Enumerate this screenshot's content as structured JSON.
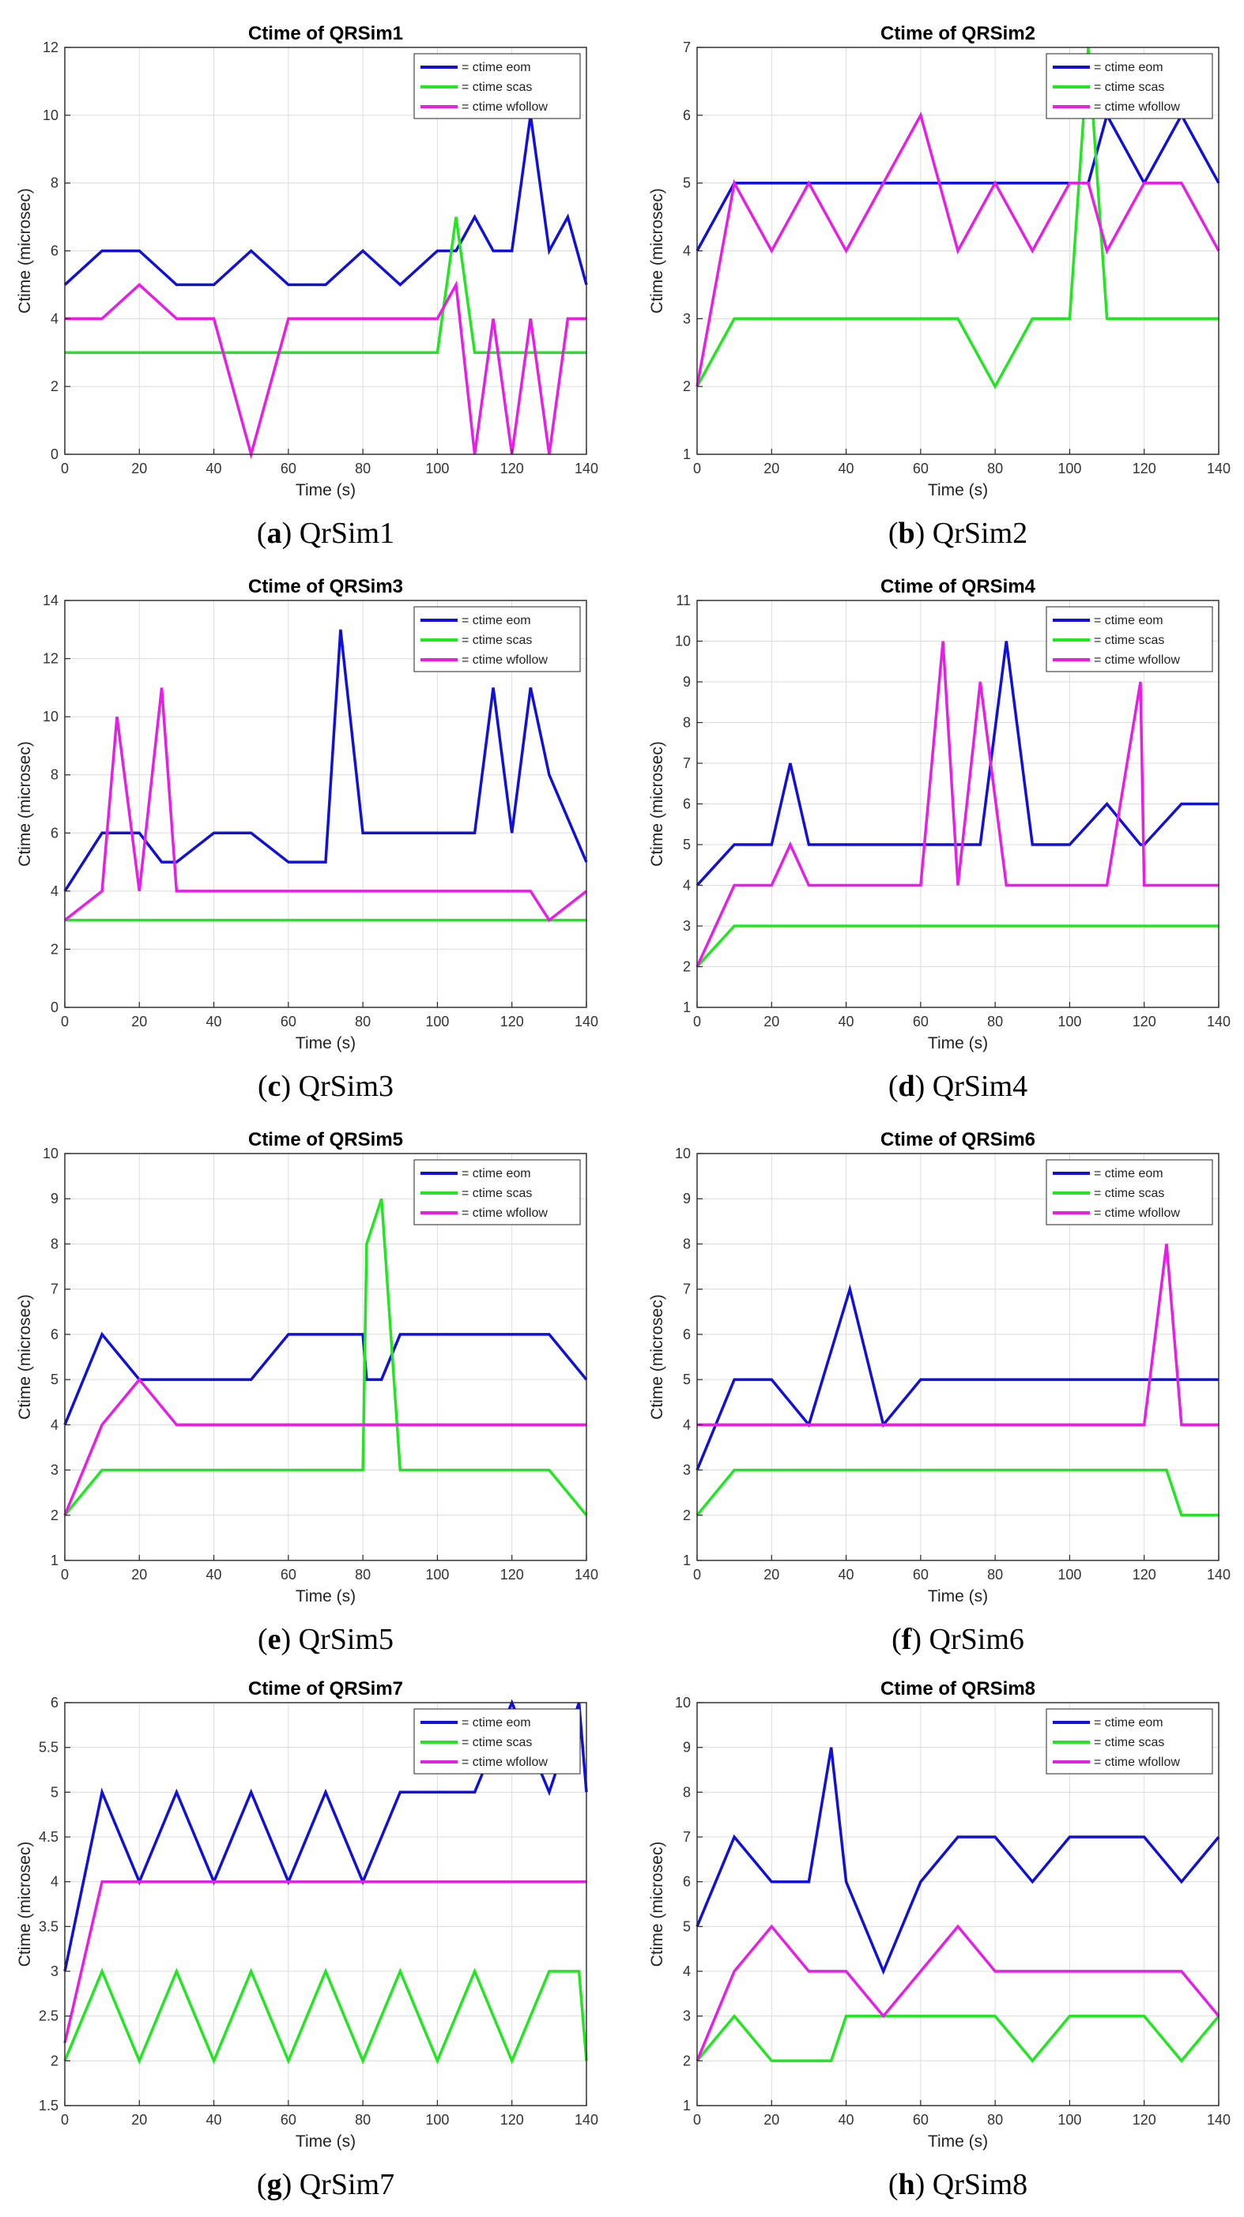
{
  "chart_data": [
    {
      "type": "line",
      "title": "Ctime of QRSim1",
      "caption_letter": "a",
      "caption_text": "QrSim1",
      "xlabel": "Time (s)",
      "ylabel": "Ctime (microsec)",
      "xlim": [
        0,
        140
      ],
      "ylim": [
        0,
        12
      ],
      "xticks": [
        0,
        20,
        40,
        60,
        80,
        100,
        120,
        140
      ],
      "yticks": [
        0,
        2,
        4,
        6,
        8,
        10,
        12
      ],
      "grid": true,
      "legend": "top-right",
      "x": [
        0,
        10,
        20,
        30,
        40,
        50,
        60,
        70,
        80,
        90,
        100,
        105,
        110,
        115,
        120,
        125,
        130,
        135,
        140
      ],
      "series": [
        {
          "name": "= ctime eom",
          "color": "#1010d8",
          "values": [
            5,
            6,
            6,
            5,
            5,
            6,
            5,
            5,
            6,
            5,
            6,
            6,
            7,
            6,
            6,
            10,
            6,
            7,
            5
          ]
        },
        {
          "name": "= ctime scas",
          "color": "#22e622",
          "values": [
            3,
            3,
            3,
            3,
            3,
            3,
            3,
            3,
            3,
            3,
            3,
            7,
            3,
            3,
            3,
            3,
            3,
            3,
            3
          ]
        },
        {
          "name": "= ctime wfollow",
          "color": "#e61ee6",
          "values": [
            4,
            4,
            5,
            4,
            4,
            0,
            4,
            4,
            4,
            4,
            4,
            5,
            0,
            4,
            0,
            4,
            0,
            4,
            4
          ]
        }
      ]
    },
    {
      "type": "line",
      "title": "Ctime of QRSim2",
      "caption_letter": "b",
      "caption_text": "QrSim2",
      "xlabel": "Time (s)",
      "ylabel": "Ctime (microsec)",
      "xlim": [
        0,
        140
      ],
      "ylim": [
        1,
        7
      ],
      "xticks": [
        0,
        20,
        40,
        60,
        80,
        100,
        120,
        140
      ],
      "yticks": [
        1,
        2,
        3,
        4,
        5,
        6,
        7
      ],
      "grid": true,
      "legend": "top-right",
      "x": [
        0,
        10,
        20,
        30,
        40,
        50,
        60,
        70,
        80,
        90,
        100,
        105,
        110,
        120,
        130,
        140
      ],
      "series": [
        {
          "name": "= ctime eom",
          "color": "#1010d8",
          "values": [
            4,
            5,
            5,
            5,
            5,
            5,
            5,
            5,
            5,
            5,
            5,
            5,
            6,
            5,
            6,
            5
          ]
        },
        {
          "name": "= ctime scas",
          "color": "#22e622",
          "values": [
            2,
            3,
            3,
            3,
            3,
            3,
            3,
            3,
            2,
            3,
            3,
            7,
            3,
            3,
            3,
            3
          ]
        },
        {
          "name": "= ctime wfollow",
          "color": "#e61ee6",
          "values": [
            2,
            5,
            4,
            5,
            4,
            5,
            6,
            4,
            5,
            4,
            5,
            5,
            4,
            5,
            5,
            4
          ]
        }
      ]
    },
    {
      "type": "line",
      "title": "Ctime of QRSim3",
      "caption_letter": "c",
      "caption_text": "QrSim3",
      "xlabel": "Time (s)",
      "ylabel": "Ctime (microsec)",
      "xlim": [
        0,
        140
      ],
      "ylim": [
        0,
        14
      ],
      "xticks": [
        0,
        20,
        40,
        60,
        80,
        100,
        120,
        140
      ],
      "yticks": [
        0,
        2,
        4,
        6,
        8,
        10,
        12,
        14
      ],
      "grid": true,
      "legend": "top-right",
      "x": [
        0,
        10,
        14,
        20,
        26,
        30,
        40,
        50,
        60,
        70,
        74,
        80,
        90,
        100,
        110,
        115,
        120,
        125,
        130,
        140
      ],
      "series": [
        {
          "name": "= ctime eom",
          "color": "#1010d8",
          "values": [
            4,
            6,
            6,
            6,
            5,
            5,
            6,
            6,
            5,
            5,
            13,
            6,
            6,
            6,
            6,
            11,
            6,
            11,
            8,
            5
          ]
        },
        {
          "name": "= ctime scas",
          "color": "#22e622",
          "values": [
            3,
            3,
            3,
            3,
            3,
            3,
            3,
            3,
            3,
            3,
            3,
            3,
            3,
            3,
            3,
            3,
            3,
            3,
            3,
            3
          ]
        },
        {
          "name": "= ctime wfollow",
          "color": "#e61ee6",
          "values": [
            3,
            4,
            10,
            4,
            11,
            4,
            4,
            4,
            4,
            4,
            4,
            4,
            4,
            4,
            4,
            4,
            4,
            4,
            3,
            4
          ]
        }
      ]
    },
    {
      "type": "line",
      "title": "Ctime of QRSim4",
      "caption_letter": "d",
      "caption_text": "QrSim4",
      "xlabel": "Time (s)",
      "ylabel": "Ctime (microsec)",
      "xlim": [
        0,
        140
      ],
      "ylim": [
        1,
        11
      ],
      "xticks": [
        0,
        20,
        40,
        60,
        80,
        100,
        120,
        140
      ],
      "yticks": [
        1,
        2,
        3,
        4,
        5,
        6,
        7,
        8,
        9,
        10,
        11
      ],
      "grid": true,
      "legend": "top-right",
      "x": [
        0,
        10,
        20,
        25,
        30,
        40,
        50,
        60,
        66,
        70,
        76,
        83,
        90,
        100,
        110,
        119,
        120,
        130,
        140
      ],
      "series": [
        {
          "name": "= ctime eom",
          "color": "#1010d8",
          "values": [
            4,
            5,
            5,
            7,
            5,
            5,
            5,
            5,
            5,
            5,
            5,
            10,
            5,
            5,
            6,
            5,
            5,
            6,
            6
          ]
        },
        {
          "name": "= ctime scas",
          "color": "#22e622",
          "values": [
            2,
            3,
            3,
            3,
            3,
            3,
            3,
            3,
            3,
            3,
            3,
            3,
            3,
            3,
            3,
            3,
            3,
            3,
            3
          ]
        },
        {
          "name": "= ctime wfollow",
          "color": "#e61ee6",
          "values": [
            2,
            4,
            4,
            5,
            4,
            4,
            4,
            4,
            10,
            4,
            9,
            4,
            4,
            4,
            4,
            9,
            4,
            4,
            4
          ]
        }
      ]
    },
    {
      "type": "line",
      "title": "Ctime of QRSim5",
      "caption_letter": "e",
      "caption_text": "QrSim5",
      "xlabel": "Time (s)",
      "ylabel": "Ctime (microsec)",
      "xlim": [
        0,
        140
      ],
      "ylim": [
        1,
        10
      ],
      "xticks": [
        0,
        20,
        40,
        60,
        80,
        100,
        120,
        140
      ],
      "yticks": [
        1,
        2,
        3,
        4,
        5,
        6,
        7,
        8,
        9,
        10
      ],
      "grid": true,
      "legend": "top-right",
      "x": [
        0,
        10,
        20,
        30,
        40,
        50,
        60,
        70,
        80,
        81,
        85,
        90,
        100,
        110,
        120,
        130,
        140
      ],
      "series": [
        {
          "name": "= ctime eom",
          "color": "#1010d8",
          "values": [
            4,
            6,
            5,
            5,
            5,
            5,
            6,
            6,
            6,
            5,
            5,
            6,
            6,
            6,
            6,
            6,
            5
          ]
        },
        {
          "name": "= ctime scas",
          "color": "#22e622",
          "values": [
            2,
            3,
            3,
            3,
            3,
            3,
            3,
            3,
            3,
            8,
            9,
            3,
            3,
            3,
            3,
            3,
            2
          ]
        },
        {
          "name": "= ctime wfollow",
          "color": "#e61ee6",
          "values": [
            2,
            4,
            5,
            4,
            4,
            4,
            4,
            4,
            4,
            4,
            4,
            4,
            4,
            4,
            4,
            4,
            4
          ]
        }
      ]
    },
    {
      "type": "line",
      "title": "Ctime of QRSim6",
      "caption_letter": "f",
      "caption_text": "QrSim6",
      "xlabel": "Time (s)",
      "ylabel": "Ctime (microsec)",
      "xlim": [
        0,
        140
      ],
      "ylim": [
        1,
        10
      ],
      "xticks": [
        0,
        20,
        40,
        60,
        80,
        100,
        120,
        140
      ],
      "yticks": [
        1,
        2,
        3,
        4,
        5,
        6,
        7,
        8,
        9,
        10
      ],
      "grid": true,
      "legend": "top-right",
      "x": [
        0,
        10,
        20,
        30,
        41,
        50,
        60,
        70,
        80,
        90,
        100,
        110,
        120,
        126,
        130,
        140
      ],
      "series": [
        {
          "name": "= ctime eom",
          "color": "#1010d8",
          "values": [
            3,
            5,
            5,
            4,
            7,
            4,
            5,
            5,
            5,
            5,
            5,
            5,
            5,
            5,
            5,
            5
          ]
        },
        {
          "name": "= ctime scas",
          "color": "#22e622",
          "values": [
            2,
            3,
            3,
            3,
            3,
            3,
            3,
            3,
            3,
            3,
            3,
            3,
            3,
            3,
            2,
            2
          ]
        },
        {
          "name": "= ctime wfollow",
          "color": "#e61ee6",
          "values": [
            4,
            4,
            4,
            4,
            4,
            4,
            4,
            4,
            4,
            4,
            4,
            4,
            4,
            8,
            4,
            4
          ]
        }
      ]
    },
    {
      "type": "line",
      "title": "Ctime of QRSim7",
      "caption_letter": "g",
      "caption_text": "QrSim7",
      "xlabel": "Time (s)",
      "ylabel": "Ctime (microsec)",
      "xlim": [
        0,
        140
      ],
      "ylim": [
        1.5,
        6
      ],
      "xticks": [
        0,
        20,
        40,
        60,
        80,
        100,
        120,
        140
      ],
      "yticks": [
        1.5,
        2,
        2.5,
        3,
        3.5,
        4,
        4.5,
        5,
        5.5,
        6
      ],
      "grid": true,
      "legend": "top-right",
      "x": [
        0,
        10,
        20,
        30,
        40,
        50,
        60,
        70,
        80,
        90,
        100,
        110,
        120,
        130,
        138,
        140
      ],
      "series": [
        {
          "name": "= ctime eom",
          "color": "#1010d8",
          "values": [
            3,
            5,
            4,
            5,
            4,
            5,
            4,
            5,
            4,
            5,
            5,
            5,
            6,
            5,
            6,
            5
          ]
        },
        {
          "name": "= ctime scas",
          "color": "#22e622",
          "values": [
            2,
            3,
            2,
            3,
            2,
            3,
            2,
            3,
            2,
            3,
            2,
            3,
            2,
            3,
            3,
            2
          ]
        },
        {
          "name": "= ctime wfollow",
          "color": "#e61ee6",
          "values": [
            2.2,
            4,
            4,
            4,
            4,
            4,
            4,
            4,
            4,
            4,
            4,
            4,
            4,
            4,
            4,
            4
          ]
        }
      ]
    },
    {
      "type": "line",
      "title": "Ctime of QRSim8",
      "caption_letter": "h",
      "caption_text": "QrSim8",
      "xlabel": "Time (s)",
      "ylabel": "Ctime (microsec)",
      "xlim": [
        0,
        140
      ],
      "ylim": [
        1,
        10
      ],
      "xticks": [
        0,
        20,
        40,
        60,
        80,
        100,
        120,
        140
      ],
      "yticks": [
        1,
        2,
        3,
        4,
        5,
        6,
        7,
        8,
        9,
        10
      ],
      "grid": true,
      "legend": "top-right",
      "x": [
        0,
        10,
        20,
        30,
        36,
        40,
        50,
        60,
        70,
        80,
        90,
        100,
        110,
        120,
        130,
        140
      ],
      "series": [
        {
          "name": "= ctime eom",
          "color": "#1010d8",
          "values": [
            5,
            7,
            6,
            6,
            9,
            6,
            4,
            6,
            7,
            7,
            6,
            7,
            7,
            7,
            6,
            7
          ]
        },
        {
          "name": "= ctime scas",
          "color": "#22e622",
          "values": [
            2,
            3,
            2,
            2,
            2,
            3,
            3,
            3,
            3,
            3,
            2,
            3,
            3,
            3,
            2,
            3
          ]
        },
        {
          "name": "= ctime wfollow",
          "color": "#e61ee6",
          "values": [
            2,
            4,
            5,
            4,
            4,
            4,
            3,
            4,
            5,
            4,
            4,
            4,
            4,
            4,
            4,
            3
          ]
        }
      ]
    }
  ]
}
